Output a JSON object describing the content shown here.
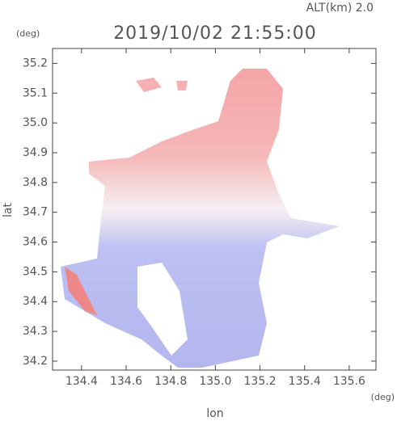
{
  "chart_data": {
    "type": "map",
    "annotation": "ALT(km) 2.0",
    "title": "2019/10/02 21:55:00",
    "ylabel_unit": "(deg)",
    "xlabel_unit": "(deg)",
    "xlabel": "lon",
    "ylabel": "lat",
    "xlim": [
      134.27,
      135.72
    ],
    "ylim": [
      34.17,
      35.25
    ],
    "xticks": [
      134.4,
      134.6,
      134.8,
      {
        "value": 135,
        "label": "135.0"
      },
      135.2,
      135.4,
      135.6
    ],
    "yticks": [
      34.2,
      34.3,
      34.4,
      34.5,
      34.6,
      34.7,
      34.8,
      34.9,
      {
        "value": 35,
        "label": "35.0"
      },
      35.1,
      35.2
    ]
  }
}
